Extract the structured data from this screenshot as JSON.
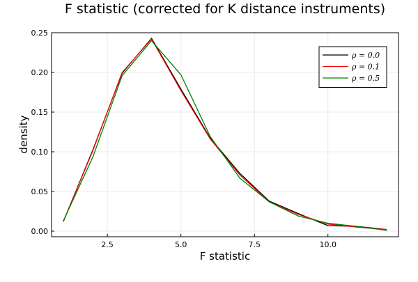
{
  "chart_data": {
    "type": "line",
    "title": "F statistic (corrected for K distance instruments)",
    "xlabel": "F statistic",
    "ylabel": "density",
    "xlim": [
      0.6,
      12.4
    ],
    "ylim": [
      -0.007,
      0.25
    ],
    "x_ticks": [
      2.5,
      5.0,
      7.5,
      10.0
    ],
    "x_tick_labels": [
      "2.5",
      "5.0",
      "7.5",
      "10.0"
    ],
    "y_ticks": [
      0.0,
      0.05,
      0.1,
      0.15,
      0.2,
      0.25
    ],
    "y_tick_labels": [
      "0.00",
      "0.05",
      "0.10",
      "0.15",
      "0.20",
      "0.25"
    ],
    "grid": true,
    "legend_position": "top-right",
    "x": [
      1,
      2,
      3,
      4,
      5,
      6,
      7,
      8,
      9,
      10,
      11,
      12
    ],
    "series": [
      {
        "name": "ρ = 0.0",
        "color": "#000000",
        "values": [
          0.012,
          0.102,
          0.199,
          0.243,
          0.179,
          0.117,
          0.073,
          0.038,
          0.022,
          0.007,
          0.006,
          0.002
        ]
      },
      {
        "name": "ρ = 0.1",
        "color": "#ff0000",
        "values": [
          0.012,
          0.101,
          0.2,
          0.242,
          0.177,
          0.116,
          0.071,
          0.037,
          0.021,
          0.009,
          0.005,
          0.002
        ]
      },
      {
        "name": "ρ = 0.5",
        "color": "#008000",
        "values": [
          0.013,
          0.093,
          0.196,
          0.24,
          0.197,
          0.119,
          0.067,
          0.037,
          0.019,
          0.01,
          0.006,
          0.001
        ]
      }
    ]
  }
}
